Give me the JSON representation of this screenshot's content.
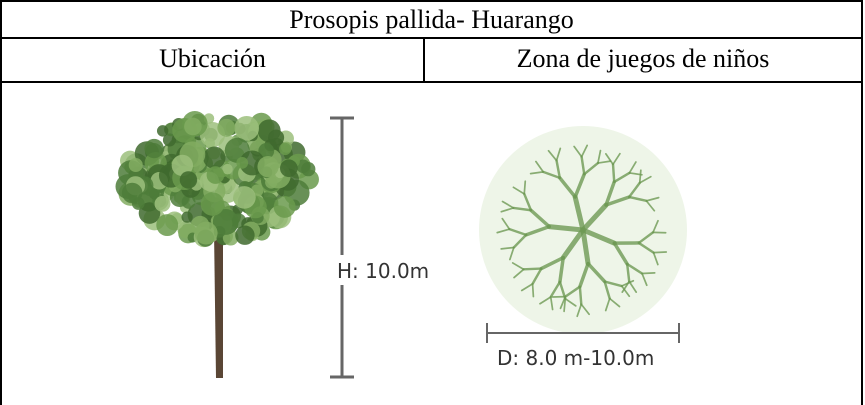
{
  "table": {
    "title": "Prosopis pallida- Huarango",
    "headers": [
      "Ubicación",
      "Zona de juegos de niños"
    ]
  },
  "figure": {
    "height_label": "H: 10.0m",
    "diameter_label": "D: 8.0 m-10.0m"
  }
}
